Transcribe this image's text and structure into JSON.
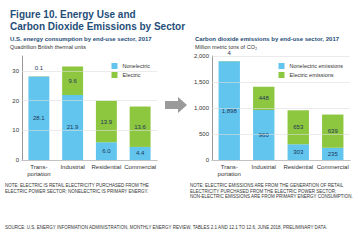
{
  "title": "Figure 10. Energy Use and\nCarbon Dioxide Emissions by Sector",
  "source": "SOURCE: U.S. ENERGY INFORMATION ADMINISTRATION, MONTHLY ENERGY REVIEW, TABLES 2.1 AND 12.1 TO 12.6, JUNE 2018, PRELIMINARY DATA.",
  "chart_data": [
    {
      "type": "bar",
      "title": "U.S. energy consumption by end-use sector, 2017",
      "subtitle": "Quadrillion British thermal units",
      "note": "NOTE: ELECTRIC IS RETAIL ELECTRICITY PURCHASED FROM THE ELECTRIC POWER SECTOR; NONELECTRIC IS PRIMARY ENERGY.",
      "categories": [
        "Trans-\nportation",
        "Industrial",
        "Residential",
        "Commercial"
      ],
      "series": [
        {
          "name": "Nonelectric",
          "color": "#62c5ee",
          "values": [
            28.1,
            21.9,
            6.0,
            4.4
          ],
          "value_labels": [
            "28.1",
            "21.9",
            "6.0",
            "4.4"
          ]
        },
        {
          "name": "Electric",
          "color": "#8dc63f",
          "values": [
            0.1,
            9.6,
            13.9,
            13.6
          ]
        }
      ],
      "ylim": [
        0,
        35
      ],
      "yticks": [
        0,
        10,
        20,
        30
      ],
      "grid": true,
      "legend": "upper right",
      "stacked": true,
      "data_labels": true
    },
    {
      "type": "bar",
      "title": "Carbon dioxide emissions by end-use sector, 2017",
      "subtitle": "Million metric tons of CO₂",
      "note": "NOTE: ELECTRIC EMISSIONS ARE FROM THE GENERATION OF RETAIL ELECTRICITY PURCHASED FROM THE ELECTRIC POWER SECTOR; NON-ELECTRIC EMISSIONS ARE FROM PRIMARY ENERGY CONSUMPTION.",
      "categories": [
        "Trans-\nportation",
        "Industrial",
        "Residential",
        "Commercial"
      ],
      "series": [
        {
          "name": "Nonelectric emissions",
          "color": "#62c5ee",
          "values": [
            1898,
            960,
            303,
            235
          ],
          "value_labels": [
            "1,898",
            "960",
            "303",
            "235"
          ]
        },
        {
          "name": "Electric emissions",
          "color": "#8dc63f",
          "values": [
            4,
            448,
            653,
            639
          ]
        }
      ],
      "ylim": [
        0,
        2000
      ],
      "yticks": [
        0,
        500,
        {
          "value": 1000,
          "label": "1,000"
        },
        {
          "value": 1500,
          "label": "1,500"
        },
        {
          "value": 2000,
          "label": "2,000"
        }
      ],
      "grid": true,
      "legend": "upper right",
      "stacked": true,
      "data_labels": true
    }
  ]
}
